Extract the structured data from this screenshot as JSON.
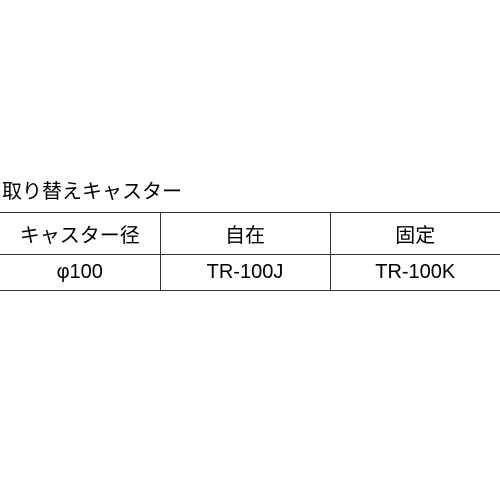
{
  "title": "取り替えキャスター",
  "table": {
    "type": "table",
    "columns": [
      "キャスター径",
      "自在",
      "固定"
    ],
    "rows": [
      [
        "φ100",
        "TR-100J",
        "TR-100K"
      ]
    ],
    "column_widths_pct": [
      32,
      34,
      34
    ],
    "border_color": "#333333",
    "text_color": "#000000",
    "background_color": "#ffffff",
    "font_size_pt": 15,
    "text_align": "center"
  }
}
